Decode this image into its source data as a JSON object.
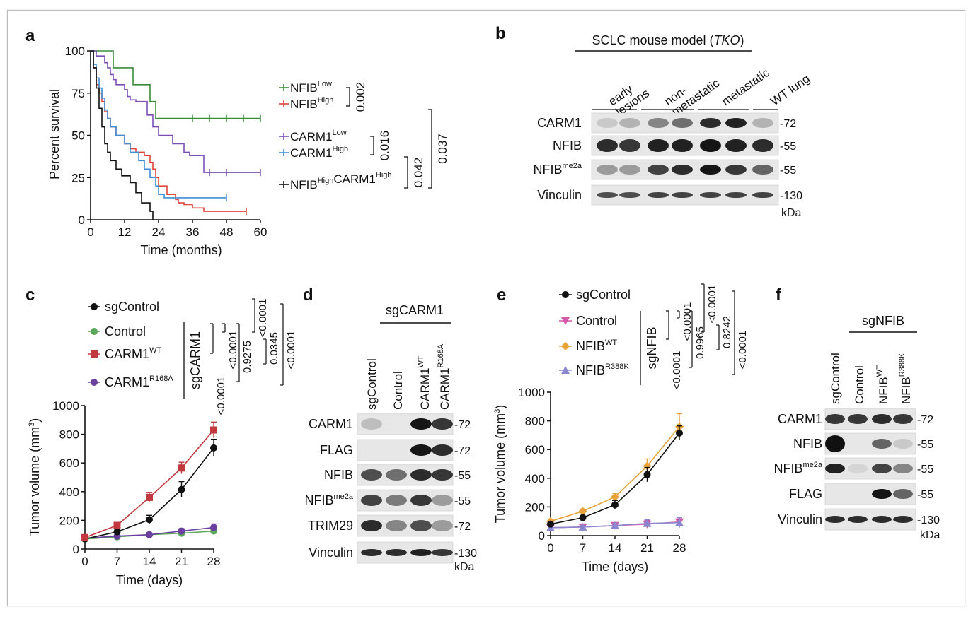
{
  "panels": {
    "a": {
      "letter": "a",
      "ylabel": "Percent survival",
      "xlabel": "Time (months)",
      "yticks": [
        "0",
        "25",
        "50",
        "75",
        "100"
      ],
      "xticks": [
        "0",
        "12",
        "24",
        "36",
        "48",
        "60"
      ],
      "legend": [
        {
          "main": "NFIB",
          "sup": "Low",
          "color": "#3a8a3a"
        },
        {
          "main": "NFIB",
          "sup": "High",
          "color": "#e0453a"
        },
        {
          "main": "CARM1",
          "sup": "Low",
          "color": "#7d4fb5"
        },
        {
          "main": "CARM1",
          "sup": "High",
          "color": "#3f8fd6"
        },
        {
          "main": "NFIB",
          "sup": "High",
          "main2": "CARM1",
          "sup2": "High",
          "color": "#111111"
        }
      ],
      "pvals": [
        "0.002",
        "0.016",
        "0.042",
        "0.037"
      ]
    },
    "b": {
      "letter": "b",
      "header": "SCLC mouse model (",
      "header_italic": "TKO",
      "header_end": ")",
      "groups": [
        "early lesions",
        "non-metastatic",
        "metastatic",
        "WT lung"
      ],
      "group_line1": [
        "early",
        "non-",
        "metastatic",
        "WT lung"
      ],
      "group_line2": [
        "lesions",
        "metastatic",
        "",
        ""
      ],
      "rows": [
        {
          "label": "CARM1",
          "sup": "",
          "mw": "-72"
        },
        {
          "label": "NFIB",
          "sup": "",
          "mw": "-55"
        },
        {
          "label": "NFIB",
          "sup": "me2a",
          "mw": "-55"
        },
        {
          "label": "Vinculin",
          "sup": "",
          "mw": "-130"
        }
      ],
      "unit": "kDa"
    },
    "c": {
      "letter": "c",
      "ylabel": "Tumor volume (mm",
      "ylabel_sup": "3",
      "ylabel_end": ")",
      "xlabel": "Time (days)",
      "legend": [
        {
          "main": "sgControl",
          "sup": "",
          "color": "#111111"
        },
        {
          "main": "Control",
          "sup": "",
          "color": "#5aa85a"
        },
        {
          "main": "CARM1",
          "sup": "WT",
          "color": "#c2383f"
        },
        {
          "main": "CARM1",
          "sup": "R168A",
          "color": "#6a3fa0"
        }
      ],
      "group_label": "sgCARM1",
      "pvals": [
        "<0.0001",
        "<0.0001",
        "0.9275",
        "<0.0001",
        "0.0345",
        "<0.0001"
      ]
    },
    "d": {
      "letter": "d",
      "header": "sgCARM1",
      "lanes": [
        {
          "main": "sgControl",
          "sup": ""
        },
        {
          "main": "Control",
          "sup": ""
        },
        {
          "main": "CARM1",
          "sup": "WT"
        },
        {
          "main": "CARM1",
          "sup": "R168A"
        }
      ],
      "rows": [
        {
          "label": "CARM1",
          "sup": "",
          "mw": "-72"
        },
        {
          "label": "FLAG",
          "sup": "",
          "mw": "-72"
        },
        {
          "label": "NFIB",
          "sup": "",
          "mw": "-55"
        },
        {
          "label": "NFIB",
          "sup": "me2a",
          "mw": "-55"
        },
        {
          "label": "TRIM29",
          "sup": "",
          "mw": "-72"
        },
        {
          "label": "Vinculin",
          "sup": "",
          "mw": "-130"
        }
      ],
      "unit": "kDa"
    },
    "e": {
      "letter": "e",
      "ylabel": "Tumor volume (mm",
      "ylabel_sup": "3",
      "ylabel_end": ")",
      "xlabel": "Time (days)",
      "legend": [
        {
          "main": "sgControl",
          "sup": "",
          "color": "#111111"
        },
        {
          "main": "Control",
          "sup": "",
          "color": "#d656a8"
        },
        {
          "main": "NFIB",
          "sup": "WT",
          "color": "#e8a23a"
        },
        {
          "main": "NFIB",
          "sup": "R388K",
          "color": "#8a86d0"
        }
      ],
      "group_label": "sgNFIB",
      "pvals": [
        "<0.0001",
        "<0.0001",
        "0.9965",
        "<0.0001",
        "0.8242",
        "<0.0001"
      ]
    },
    "f": {
      "letter": "f",
      "header": "sgNFIB",
      "lanes": [
        {
          "main": "sgControl",
          "sup": ""
        },
        {
          "main": "Control",
          "sup": ""
        },
        {
          "main": "NFIB",
          "sup": "WT"
        },
        {
          "main": "NFIB",
          "sup": "R388K"
        }
      ],
      "rows": [
        {
          "label": "CARM1",
          "sup": "",
          "mw": "-72"
        },
        {
          "label": "NFIB",
          "sup": "",
          "mw": "-55"
        },
        {
          "label": "NFIB",
          "sup": "me2a",
          "mw": "-55"
        },
        {
          "label": "FLAG",
          "sup": "",
          "mw": "-55"
        },
        {
          "label": "Vinculin",
          "sup": "",
          "mw": "-130"
        }
      ],
      "unit": "kDa"
    }
  },
  "chart_data": [
    {
      "panel": "a",
      "type": "line",
      "step": true,
      "xlabel": "Time (months)",
      "ylabel": "Percent survival",
      "xlim": [
        0,
        60
      ],
      "ylim": [
        0,
        100
      ],
      "xticks": [
        0,
        12,
        24,
        36,
        48,
        60
      ],
      "yticks": [
        0,
        25,
        50,
        75,
        100
      ],
      "series": [
        {
          "name": "NFIB Low",
          "color": "#3a8a3a",
          "x": [
            0,
            1,
            8,
            9,
            15,
            16,
            21,
            23,
            60
          ],
          "y": [
            100,
            100,
            90,
            90,
            80,
            80,
            70,
            60,
            60
          ]
        },
        {
          "name": "NFIB High",
          "color": "#e0453a",
          "x": [
            0,
            1,
            2,
            3,
            4,
            5,
            6,
            7,
            9,
            12,
            14,
            16,
            19,
            21,
            22,
            23,
            24,
            27,
            30,
            31,
            33,
            36,
            40,
            55
          ],
          "y": [
            100,
            90,
            80,
            75,
            70,
            64,
            60,
            55,
            50,
            45,
            42,
            40,
            38,
            34,
            30,
            25,
            20,
            15,
            12,
            10,
            9,
            7,
            5,
            5
          ]
        },
        {
          "name": "CARM1 Low",
          "color": "#7d4fb5",
          "x": [
            0,
            2,
            5,
            6,
            7,
            8,
            9,
            12,
            13,
            14,
            16,
            20,
            22,
            24,
            29,
            33,
            35,
            40,
            60
          ],
          "y": [
            100,
            97,
            93,
            90,
            86,
            83,
            80,
            77,
            73,
            71,
            70,
            62,
            55,
            50,
            45,
            40,
            38,
            28,
            28
          ]
        },
        {
          "name": "CARM1 High",
          "color": "#3f8fd6",
          "x": [
            0,
            1,
            2,
            3,
            4,
            5,
            6,
            7,
            9,
            12,
            14,
            17,
            19,
            21,
            23,
            24,
            26,
            28,
            48
          ],
          "y": [
            100,
            92,
            84,
            78,
            72,
            65,
            60,
            55,
            50,
            45,
            40,
            35,
            30,
            25,
            20,
            15,
            13,
            13,
            13
          ]
        },
        {
          "name": "NFIB High CARM1 High",
          "color": "#111111",
          "x": [
            0,
            1,
            2,
            3,
            4,
            5,
            6,
            7,
            9,
            11,
            14,
            16,
            18,
            21,
            22
          ],
          "y": [
            100,
            90,
            78,
            66,
            55,
            45,
            40,
            35,
            30,
            26,
            22,
            16,
            10,
            5,
            0
          ]
        }
      ]
    },
    {
      "panel": "c",
      "type": "line",
      "xlabel": "Time (days)",
      "ylabel": "Tumor volume (mm3)",
      "xlim": [
        0,
        28
      ],
      "ylim": [
        0,
        1000
      ],
      "xticks": [
        0,
        7,
        14,
        21,
        28
      ],
      "yticks": [
        0,
        200,
        400,
        600,
        800,
        1000
      ],
      "x": [
        0,
        7,
        14,
        21,
        28
      ],
      "series": [
        {
          "name": "sgControl",
          "color": "#111111",
          "marker": "circle",
          "values": [
            70,
            120,
            205,
            415,
            705
          ],
          "err": [
            10,
            15,
            30,
            55,
            60
          ]
        },
        {
          "name": "Control",
          "color": "#5aa85a",
          "marker": "circle",
          "values": [
            70,
            85,
            100,
            110,
            125
          ],
          "err": [
            10,
            10,
            12,
            15,
            20
          ]
        },
        {
          "name": "CARM1 WT",
          "color": "#c2383f",
          "marker": "square",
          "values": [
            80,
            165,
            360,
            565,
            830
          ],
          "err": [
            10,
            15,
            35,
            40,
            55
          ]
        },
        {
          "name": "CARM1 R168A",
          "color": "#6a3fa0",
          "marker": "circle",
          "values": [
            75,
            90,
            100,
            125,
            150
          ],
          "err": [
            10,
            10,
            12,
            18,
            25
          ]
        }
      ]
    },
    {
      "panel": "e",
      "type": "line",
      "xlabel": "Time (days)",
      "ylabel": "Tumor volume (mm3)",
      "xlim": [
        0,
        28
      ],
      "ylim": [
        0,
        1000
      ],
      "xticks": [
        0,
        7,
        14,
        21,
        28
      ],
      "yticks": [
        0,
        200,
        400,
        600,
        800,
        1000
      ],
      "x": [
        0,
        7,
        14,
        21,
        28
      ],
      "series": [
        {
          "name": "sgControl",
          "color": "#111111",
          "marker": "circle",
          "values": [
            80,
            125,
            215,
            425,
            715
          ],
          "err": [
            10,
            15,
            30,
            50,
            50
          ]
        },
        {
          "name": "Control",
          "color": "#d656a8",
          "marker": "triangle-down",
          "values": [
            55,
            60,
            70,
            80,
            95
          ],
          "err": [
            10,
            10,
            15,
            25,
            30
          ]
        },
        {
          "name": "NFIB WT",
          "color": "#e8a23a",
          "marker": "diamond",
          "values": [
            100,
            170,
            270,
            485,
            760
          ],
          "err": [
            12,
            15,
            25,
            50,
            90
          ]
        },
        {
          "name": "NFIB R388K",
          "color": "#8a86d0",
          "marker": "triangle-up",
          "values": [
            55,
            60,
            70,
            85,
            90
          ],
          "err": [
            10,
            10,
            15,
            25,
            35
          ]
        }
      ]
    }
  ]
}
